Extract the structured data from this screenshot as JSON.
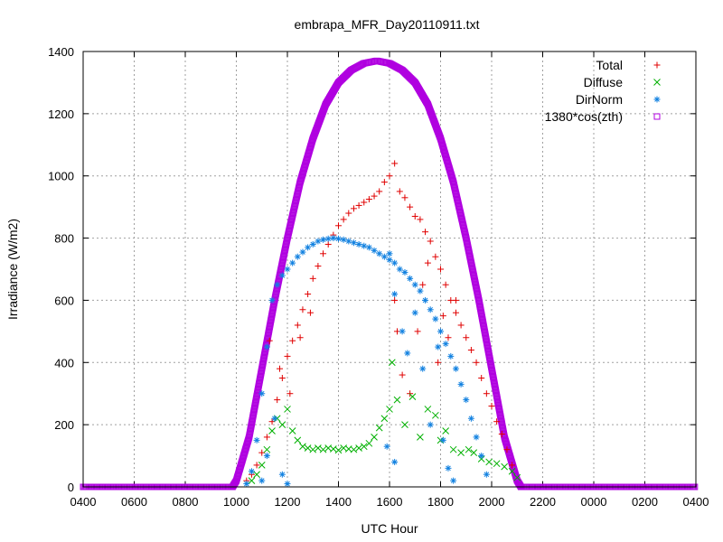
{
  "chart_data": {
    "type": "scatter",
    "title": "embrapa_MFR_Day20110911.txt",
    "xlabel": "UTC Hour",
    "ylabel": "Irradiance (W/m2)",
    "xlim": [
      0,
      24
    ],
    "ylim": [
      0,
      1400
    ],
    "x_ticks": [
      {
        "x": 0,
        "label": "0400"
      },
      {
        "x": 2,
        "label": "0600"
      },
      {
        "x": 4,
        "label": "0800"
      },
      {
        "x": 6,
        "label": "1000"
      },
      {
        "x": 8,
        "label": "1200"
      },
      {
        "x": 10,
        "label": "1400"
      },
      {
        "x": 12,
        "label": "1600"
      },
      {
        "x": 14,
        "label": "1800"
      },
      {
        "x": 16,
        "label": "2000"
      },
      {
        "x": 18,
        "label": "2200"
      },
      {
        "x": 20,
        "label": "0000"
      },
      {
        "x": 22,
        "label": "0200"
      },
      {
        "x": 24,
        "label": "0400"
      }
    ],
    "y_ticks": [
      0,
      200,
      400,
      600,
      800,
      1000,
      1200,
      1400
    ],
    "grid": true,
    "legend_position": "top-right",
    "series": [
      {
        "name": "Total",
        "marker": "+",
        "color": "#e00000",
        "points": [
          [
            6.4,
            20
          ],
          [
            6.6,
            40
          ],
          [
            6.8,
            70
          ],
          [
            7.0,
            110
          ],
          [
            7.2,
            160
          ],
          [
            7.4,
            210
          ],
          [
            7.6,
            280
          ],
          [
            7.8,
            350
          ],
          [
            8.0,
            420
          ],
          [
            8.2,
            470
          ],
          [
            8.4,
            520
          ],
          [
            8.6,
            570
          ],
          [
            8.8,
            620
          ],
          [
            9.0,
            670
          ],
          [
            9.2,
            710
          ],
          [
            9.4,
            750
          ],
          [
            9.6,
            780
          ],
          [
            9.8,
            810
          ],
          [
            10.0,
            840
          ],
          [
            10.2,
            860
          ],
          [
            10.4,
            880
          ],
          [
            10.6,
            895
          ],
          [
            10.8,
            905
          ],
          [
            11.0,
            915
          ],
          [
            11.2,
            925
          ],
          [
            11.4,
            935
          ],
          [
            11.6,
            950
          ],
          [
            11.8,
            980
          ],
          [
            12.0,
            1000
          ],
          [
            12.2,
            1040
          ],
          [
            12.4,
            950
          ],
          [
            12.6,
            930
          ],
          [
            12.8,
            900
          ],
          [
            13.0,
            870
          ],
          [
            13.2,
            860
          ],
          [
            13.4,
            820
          ],
          [
            13.6,
            790
          ],
          [
            13.8,
            740
          ],
          [
            14.0,
            700
          ],
          [
            14.2,
            650
          ],
          [
            14.4,
            600
          ],
          [
            14.6,
            560
          ],
          [
            14.8,
            520
          ],
          [
            15.0,
            480
          ],
          [
            15.2,
            440
          ],
          [
            15.4,
            400
          ],
          [
            15.6,
            350
          ],
          [
            15.8,
            300
          ],
          [
            16.0,
            260
          ],
          [
            16.2,
            210
          ],
          [
            16.4,
            170
          ],
          [
            16.6,
            120
          ],
          [
            16.8,
            70
          ],
          [
            7.3,
            470
          ],
          [
            7.7,
            380
          ],
          [
            8.1,
            300
          ],
          [
            8.5,
            480
          ],
          [
            8.9,
            560
          ],
          [
            12.2,
            600
          ],
          [
            12.3,
            500
          ],
          [
            12.5,
            360
          ],
          [
            12.8,
            300
          ],
          [
            13.1,
            500
          ],
          [
            13.3,
            650
          ],
          [
            13.5,
            720
          ],
          [
            13.9,
            400
          ],
          [
            14.1,
            550
          ],
          [
            14.3,
            480
          ],
          [
            14.6,
            600
          ]
        ]
      },
      {
        "name": "Diffuse",
        "marker": "x",
        "color": "#00b000",
        "points": [
          [
            6.6,
            20
          ],
          [
            6.8,
            40
          ],
          [
            7.0,
            70
          ],
          [
            7.2,
            120
          ],
          [
            7.4,
            180
          ],
          [
            7.6,
            220
          ],
          [
            7.8,
            200
          ],
          [
            8.0,
            250
          ],
          [
            8.2,
            180
          ],
          [
            8.4,
            150
          ],
          [
            8.6,
            130
          ],
          [
            8.8,
            125
          ],
          [
            9.0,
            120
          ],
          [
            9.2,
            125
          ],
          [
            9.4,
            120
          ],
          [
            9.6,
            125
          ],
          [
            9.8,
            122
          ],
          [
            10.0,
            118
          ],
          [
            10.2,
            125
          ],
          [
            10.4,
            122
          ],
          [
            10.6,
            120
          ],
          [
            10.8,
            125
          ],
          [
            11.0,
            130
          ],
          [
            11.2,
            140
          ],
          [
            11.4,
            160
          ],
          [
            11.6,
            190
          ],
          [
            11.8,
            220
          ],
          [
            12.0,
            250
          ],
          [
            12.1,
            400
          ],
          [
            12.3,
            280
          ],
          [
            12.6,
            200
          ],
          [
            12.9,
            290
          ],
          [
            13.2,
            160
          ],
          [
            13.5,
            250
          ],
          [
            13.8,
            230
          ],
          [
            14.0,
            150
          ],
          [
            14.2,
            180
          ],
          [
            14.5,
            120
          ],
          [
            14.8,
            110
          ],
          [
            15.1,
            120
          ],
          [
            15.3,
            110
          ],
          [
            15.6,
            90
          ],
          [
            15.9,
            80
          ],
          [
            16.2,
            75
          ],
          [
            16.5,
            65
          ],
          [
            16.8,
            50
          ],
          [
            17.0,
            30
          ]
        ]
      },
      {
        "name": "DirNorm",
        "marker": "*",
        "color": "#1080e0",
        "points": [
          [
            6.4,
            10
          ],
          [
            6.6,
            50
          ],
          [
            6.8,
            150
          ],
          [
            7.0,
            300
          ],
          [
            7.2,
            450
          ],
          [
            7.4,
            600
          ],
          [
            7.6,
            650
          ],
          [
            7.8,
            680
          ],
          [
            8.0,
            700
          ],
          [
            8.2,
            720
          ],
          [
            8.4,
            740
          ],
          [
            8.6,
            755
          ],
          [
            8.8,
            770
          ],
          [
            9.0,
            780
          ],
          [
            9.2,
            790
          ],
          [
            9.4,
            795
          ],
          [
            9.6,
            798
          ],
          [
            9.8,
            800
          ],
          [
            10.0,
            798
          ],
          [
            10.2,
            795
          ],
          [
            10.4,
            790
          ],
          [
            10.6,
            785
          ],
          [
            10.8,
            780
          ],
          [
            11.0,
            775
          ],
          [
            11.2,
            770
          ],
          [
            11.4,
            760
          ],
          [
            11.6,
            750
          ],
          [
            11.8,
            740
          ],
          [
            12.0,
            730
          ],
          [
            12.2,
            720
          ],
          [
            12.4,
            700
          ],
          [
            12.6,
            690
          ],
          [
            12.8,
            670
          ],
          [
            13.0,
            650
          ],
          [
            13.2,
            630
          ],
          [
            13.4,
            600
          ],
          [
            13.6,
            570
          ],
          [
            13.8,
            540
          ],
          [
            14.0,
            500
          ],
          [
            14.2,
            460
          ],
          [
            14.4,
            420
          ],
          [
            14.6,
            380
          ],
          [
            14.8,
            330
          ],
          [
            15.0,
            280
          ],
          [
            15.2,
            220
          ],
          [
            15.4,
            160
          ],
          [
            15.6,
            100
          ],
          [
            15.8,
            40
          ],
          [
            7.0,
            20
          ],
          [
            7.2,
            100
          ],
          [
            7.5,
            220
          ],
          [
            7.8,
            40
          ],
          [
            8.0,
            10
          ],
          [
            12.0,
            750
          ],
          [
            12.2,
            620
          ],
          [
            12.5,
            500
          ],
          [
            12.7,
            430
          ],
          [
            13.0,
            560
          ],
          [
            13.3,
            380
          ],
          [
            13.6,
            200
          ],
          [
            13.9,
            450
          ],
          [
            14.1,
            150
          ],
          [
            14.3,
            60
          ],
          [
            14.5,
            20
          ],
          [
            11.9,
            130
          ],
          [
            12.2,
            80
          ]
        ]
      },
      {
        "name": "1380*cos(zth)",
        "marker": "square",
        "color": "#b000e0",
        "points": [
          [
            0,
            0
          ],
          [
            5.85,
            0
          ],
          [
            6.0,
            20
          ],
          [
            6.5,
            160
          ],
          [
            7.0,
            380
          ],
          [
            7.5,
            600
          ],
          [
            8.0,
            800
          ],
          [
            8.5,
            980
          ],
          [
            9.0,
            1120
          ],
          [
            9.5,
            1230
          ],
          [
            10.0,
            1300
          ],
          [
            10.5,
            1340
          ],
          [
            11.0,
            1362
          ],
          [
            11.5,
            1370
          ],
          [
            12.0,
            1362
          ],
          [
            12.5,
            1340
          ],
          [
            13.0,
            1300
          ],
          [
            13.5,
            1230
          ],
          [
            14.0,
            1120
          ],
          [
            14.5,
            980
          ],
          [
            15.0,
            800
          ],
          [
            15.5,
            600
          ],
          [
            16.0,
            380
          ],
          [
            16.5,
            160
          ],
          [
            17.0,
            20
          ],
          [
            17.15,
            0
          ],
          [
            24,
            0
          ]
        ]
      }
    ]
  }
}
